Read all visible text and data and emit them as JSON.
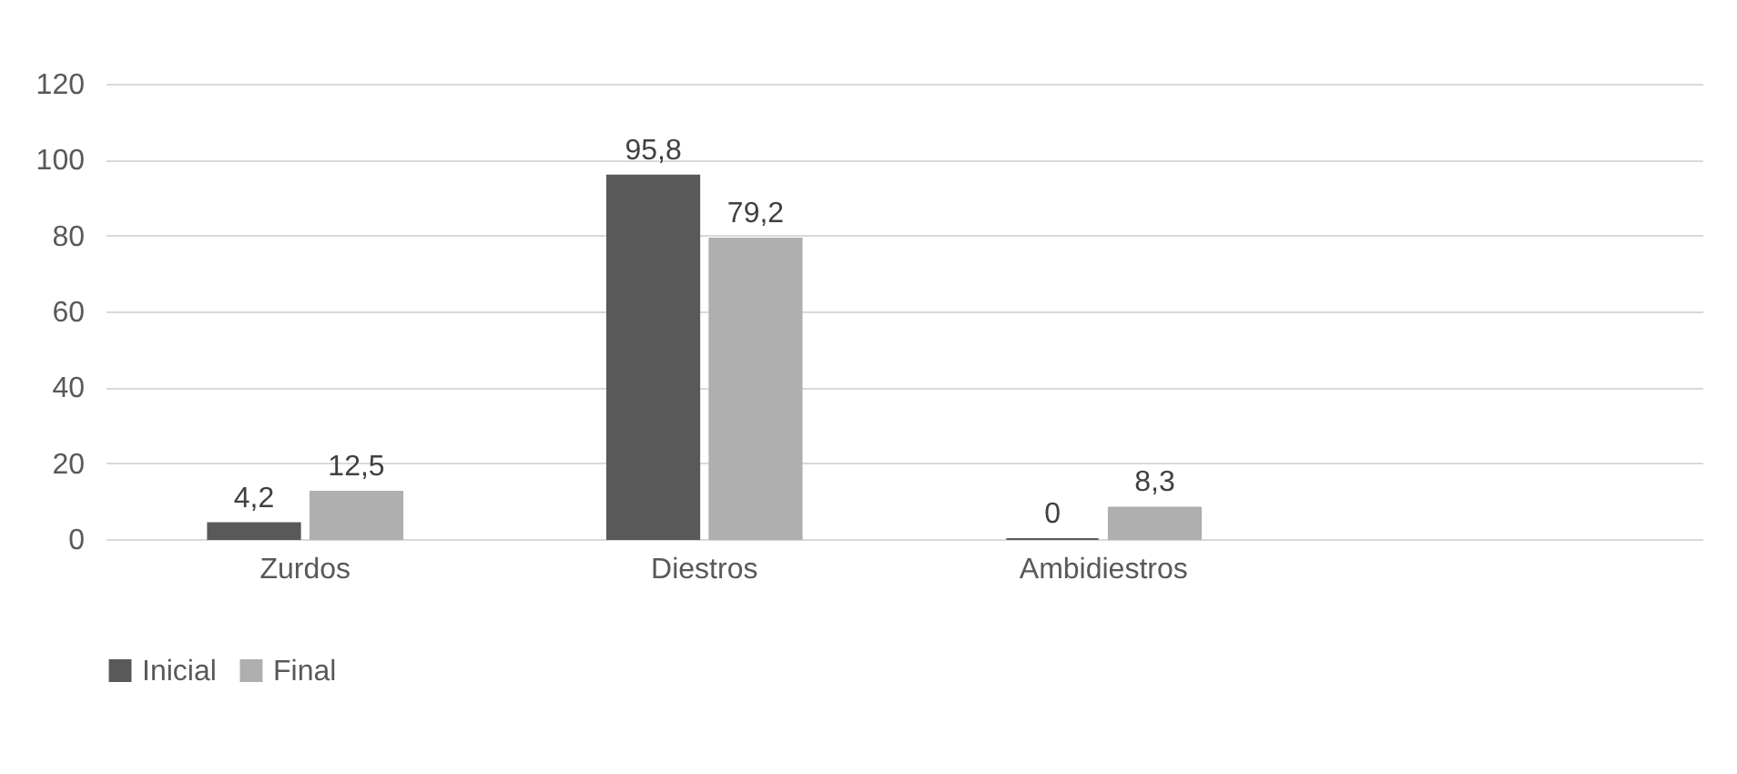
{
  "chart_data": {
    "type": "bar",
    "categories": [
      "Zurdos",
      "Diestros",
      "Ambidiestros",
      null
    ],
    "series": [
      {
        "name": "Inicial",
        "color": "#595959",
        "values": [
          4.2,
          95.8,
          0,
          null
        ],
        "value_labels": [
          "4,2",
          "95,8",
          "0",
          null
        ]
      },
      {
        "name": "Final",
        "color": "#afafaf",
        "values": [
          12.5,
          79.2,
          8.3,
          null
        ],
        "value_labels": [
          "12,5",
          "79,2",
          "8,3",
          null
        ]
      }
    ],
    "ylim": [
      0,
      120
    ],
    "yticks": [
      0,
      20,
      40,
      60,
      80,
      100,
      120
    ],
    "grid": "y",
    "legend": "bottom"
  }
}
